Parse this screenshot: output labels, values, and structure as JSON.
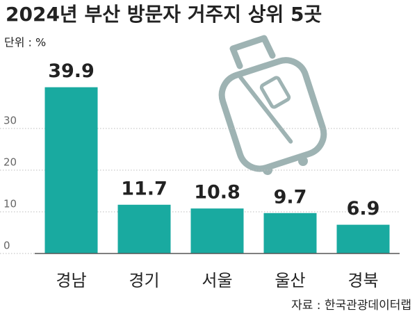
{
  "chart_data": {
    "type": "bar",
    "title": "2024년 부산 방문자 거주지 상위 5곳",
    "unit": "단위 : %",
    "source": "자료 : 한국관광데이터랩",
    "categories": [
      "경남",
      "경기",
      "서울",
      "울산",
      "경북"
    ],
    "values": [
      39.9,
      11.7,
      10.8,
      9.7,
      6.9
    ],
    "color": "#19aaa0",
    "ylim": [
      0,
      45
    ],
    "yticks": [
      0,
      10,
      20,
      30
    ],
    "grid": true
  }
}
